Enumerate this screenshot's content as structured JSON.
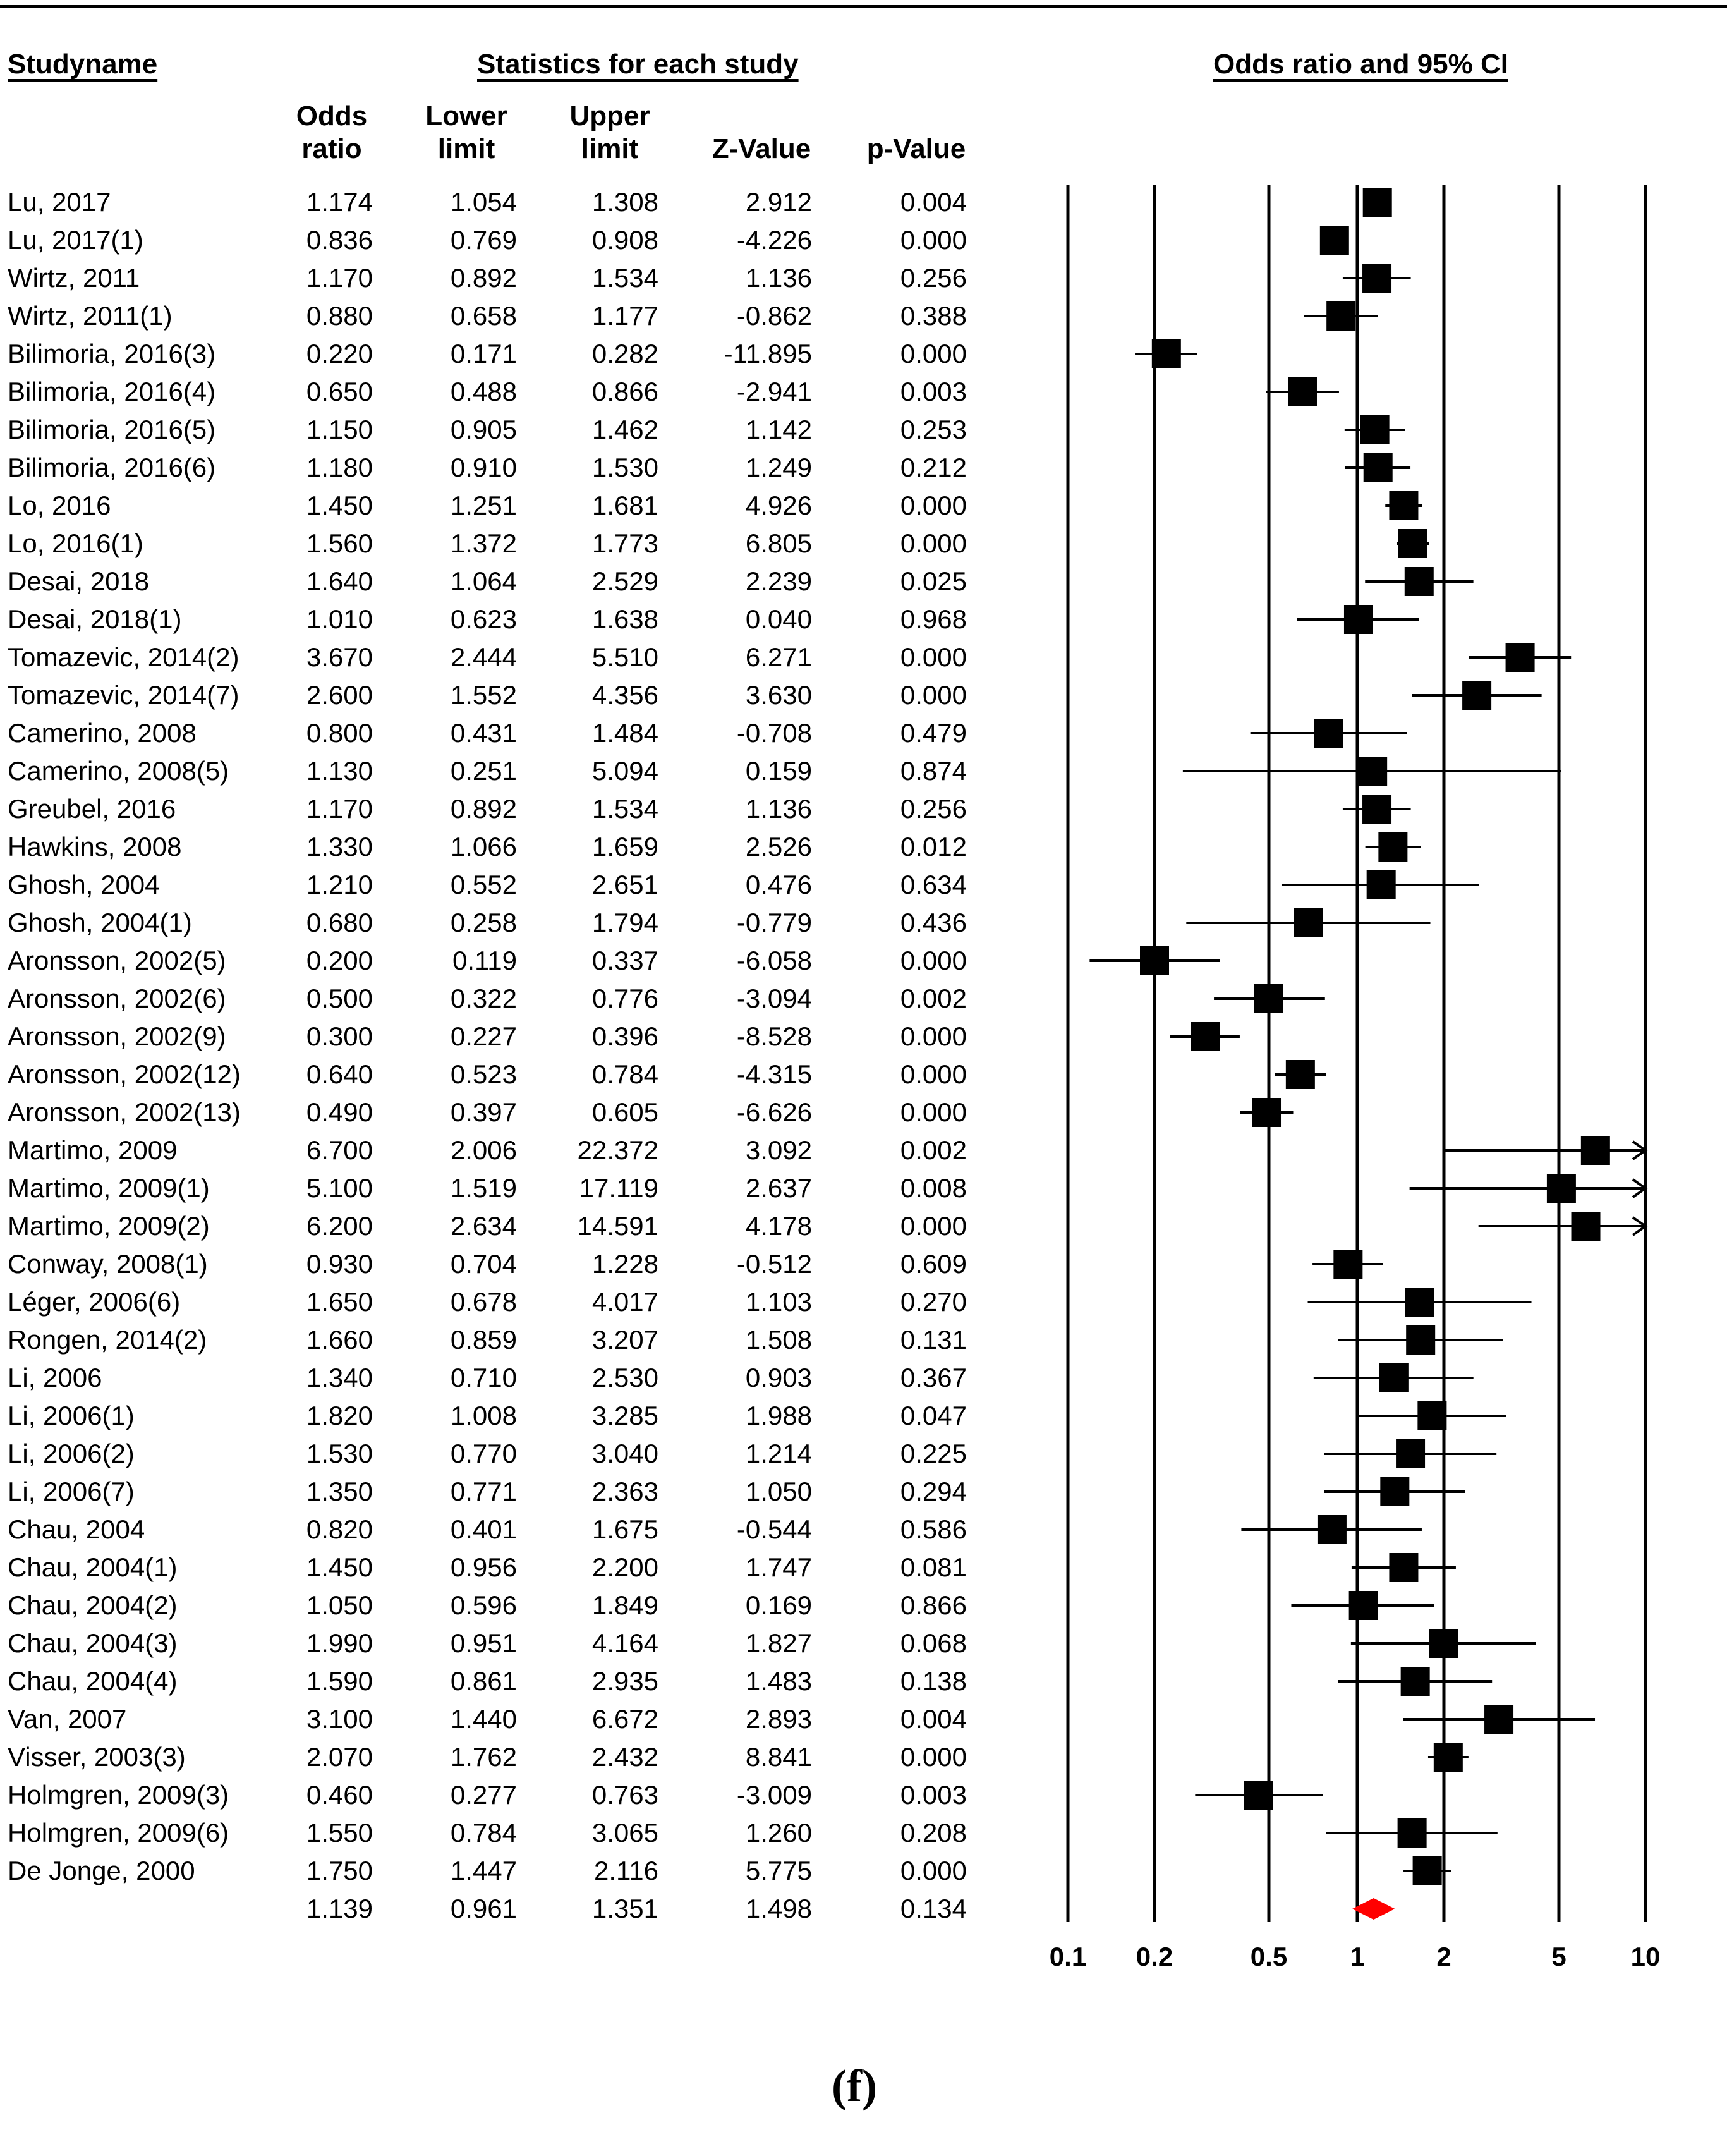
{
  "header": {
    "study_name": "Studyname",
    "statistics_title": "Statistics for each study",
    "ci_title": "Odds ratio and 95% CI"
  },
  "columns": {
    "odds": [
      "Odds",
      "ratio"
    ],
    "lower": [
      "Lower",
      "limit"
    ],
    "upper": [
      "Upper",
      "limit"
    ],
    "z": "Z-Value",
    "p": "p-Value"
  },
  "caption": "(f)",
  "chart_data": {
    "type": "forest",
    "xscale": "log",
    "xlim": [
      0.1,
      10
    ],
    "xticks": [
      "0.1",
      "0.2",
      "0.5",
      "1",
      "2",
      "5",
      "10"
    ],
    "xtick_values": [
      0.1,
      0.2,
      0.5,
      1,
      2,
      5,
      10
    ],
    "marker_color": "#000000",
    "summary_color": "#ff0000",
    "rows": [
      {
        "study": "Lu, 2017",
        "or": "1.174",
        "lower": "1.054",
        "upper": "1.308",
        "z": "2.912",
        "p": "0.004"
      },
      {
        "study": "Lu, 2017(1)",
        "or": "0.836",
        "lower": "0.769",
        "upper": "0.908",
        "z": "-4.226",
        "p": "0.000"
      },
      {
        "study": "Wirtz, 2011",
        "or": "1.170",
        "lower": "0.892",
        "upper": "1.534",
        "z": "1.136",
        "p": "0.256"
      },
      {
        "study": "Wirtz, 2011(1)",
        "or": "0.880",
        "lower": "0.658",
        "upper": "1.177",
        "z": "-0.862",
        "p": "0.388"
      },
      {
        "study": "Bilimoria, 2016(3)",
        "or": "0.220",
        "lower": "0.171",
        "upper": "0.282",
        "z": "-11.895",
        "p": "0.000"
      },
      {
        "study": "Bilimoria, 2016(4)",
        "or": "0.650",
        "lower": "0.488",
        "upper": "0.866",
        "z": "-2.941",
        "p": "0.003"
      },
      {
        "study": "Bilimoria, 2016(5)",
        "or": "1.150",
        "lower": "0.905",
        "upper": "1.462",
        "z": "1.142",
        "p": "0.253"
      },
      {
        "study": "Bilimoria, 2016(6)",
        "or": "1.180",
        "lower": "0.910",
        "upper": "1.530",
        "z": "1.249",
        "p": "0.212"
      },
      {
        "study": "Lo, 2016",
        "or": "1.450",
        "lower": "1.251",
        "upper": "1.681",
        "z": "4.926",
        "p": "0.000"
      },
      {
        "study": "Lo, 2016(1)",
        "or": "1.560",
        "lower": "1.372",
        "upper": "1.773",
        "z": "6.805",
        "p": "0.000"
      },
      {
        "study": "Desai, 2018",
        "or": "1.640",
        "lower": "1.064",
        "upper": "2.529",
        "z": "2.239",
        "p": "0.025"
      },
      {
        "study": "Desai, 2018(1)",
        "or": "1.010",
        "lower": "0.623",
        "upper": "1.638",
        "z": "0.040",
        "p": "0.968"
      },
      {
        "study": "Tomazevic, 2014(2)",
        "or": "3.670",
        "lower": "2.444",
        "upper": "5.510",
        "z": "6.271",
        "p": "0.000"
      },
      {
        "study": "Tomazevic, 2014(7)",
        "or": "2.600",
        "lower": "1.552",
        "upper": "4.356",
        "z": "3.630",
        "p": "0.000"
      },
      {
        "study": "Camerino, 2008",
        "or": "0.800",
        "lower": "0.431",
        "upper": "1.484",
        "z": "-0.708",
        "p": "0.479"
      },
      {
        "study": "Camerino, 2008(5)",
        "or": "1.130",
        "lower": "0.251",
        "upper": "5.094",
        "z": "0.159",
        "p": "0.874"
      },
      {
        "study": "Greubel, 2016",
        "or": "1.170",
        "lower": "0.892",
        "upper": "1.534",
        "z": "1.136",
        "p": "0.256"
      },
      {
        "study": "Hawkins, 2008",
        "or": "1.330",
        "lower": "1.066",
        "upper": "1.659",
        "z": "2.526",
        "p": "0.012"
      },
      {
        "study": "Ghosh, 2004",
        "or": "1.210",
        "lower": "0.552",
        "upper": "2.651",
        "z": "0.476",
        "p": "0.634"
      },
      {
        "study": "Ghosh, 2004(1)",
        "or": "0.680",
        "lower": "0.258",
        "upper": "1.794",
        "z": "-0.779",
        "p": "0.436"
      },
      {
        "study": "Aronsson, 2002(5)",
        "or": "0.200",
        "lower": "0.119",
        "upper": "0.337",
        "z": "-6.058",
        "p": "0.000"
      },
      {
        "study": "Aronsson, 2002(6)",
        "or": "0.500",
        "lower": "0.322",
        "upper": "0.776",
        "z": "-3.094",
        "p": "0.002"
      },
      {
        "study": "Aronsson, 2002(9)",
        "or": "0.300",
        "lower": "0.227",
        "upper": "0.396",
        "z": "-8.528",
        "p": "0.000"
      },
      {
        "study": "Aronsson, 2002(12)",
        "or": "0.640",
        "lower": "0.523",
        "upper": "0.784",
        "z": "-4.315",
        "p": "0.000"
      },
      {
        "study": "Aronsson, 2002(13)",
        "or": "0.490",
        "lower": "0.397",
        "upper": "0.605",
        "z": "-6.626",
        "p": "0.000"
      },
      {
        "study": "Martimo, 2009",
        "or": "6.700",
        "lower": "2.006",
        "upper": "22.372",
        "z": "3.092",
        "p": "0.002"
      },
      {
        "study": "Martimo, 2009(1)",
        "or": "5.100",
        "lower": "1.519",
        "upper": "17.119",
        "z": "2.637",
        "p": "0.008"
      },
      {
        "study": "Martimo, 2009(2)",
        "or": "6.200",
        "lower": "2.634",
        "upper": "14.591",
        "z": "4.178",
        "p": "0.000"
      },
      {
        "study": "Conway, 2008(1)",
        "or": "0.930",
        "lower": "0.704",
        "upper": "1.228",
        "z": "-0.512",
        "p": "0.609"
      },
      {
        "study": "Léger, 2006(6)",
        "or": "1.650",
        "lower": "0.678",
        "upper": "4.017",
        "z": "1.103",
        "p": "0.270"
      },
      {
        "study": "Rongen, 2014(2)",
        "or": "1.660",
        "lower": "0.859",
        "upper": "3.207",
        "z": "1.508",
        "p": "0.131"
      },
      {
        "study": "Li, 2006",
        "or": "1.340",
        "lower": "0.710",
        "upper": "2.530",
        "z": "0.903",
        "p": "0.367"
      },
      {
        "study": "Li, 2006(1)",
        "or": "1.820",
        "lower": "1.008",
        "upper": "3.285",
        "z": "1.988",
        "p": "0.047"
      },
      {
        "study": "Li, 2006(2)",
        "or": "1.530",
        "lower": "0.770",
        "upper": "3.040",
        "z": "1.214",
        "p": "0.225"
      },
      {
        "study": "Li, 2006(7)",
        "or": "1.350",
        "lower": "0.771",
        "upper": "2.363",
        "z": "1.050",
        "p": "0.294"
      },
      {
        "study": "Chau, 2004",
        "or": "0.820",
        "lower": "0.401",
        "upper": "1.675",
        "z": "-0.544",
        "p": "0.586"
      },
      {
        "study": "Chau, 2004(1)",
        "or": "1.450",
        "lower": "0.956",
        "upper": "2.200",
        "z": "1.747",
        "p": "0.081"
      },
      {
        "study": "Chau, 2004(2)",
        "or": "1.050",
        "lower": "0.596",
        "upper": "1.849",
        "z": "0.169",
        "p": "0.866"
      },
      {
        "study": "Chau, 2004(3)",
        "or": "1.990",
        "lower": "0.951",
        "upper": "4.164",
        "z": "1.827",
        "p": "0.068"
      },
      {
        "study": "Chau, 2004(4)",
        "or": "1.590",
        "lower": "0.861",
        "upper": "2.935",
        "z": "1.483",
        "p": "0.138"
      },
      {
        "study": "Van, 2007",
        "or": "3.100",
        "lower": "1.440",
        "upper": "6.672",
        "z": "2.893",
        "p": "0.004"
      },
      {
        "study": "Visser, 2003(3)",
        "or": "2.070",
        "lower": "1.762",
        "upper": "2.432",
        "z": "8.841",
        "p": "0.000"
      },
      {
        "study": "Holmgren, 2009(3)",
        "or": "0.460",
        "lower": "0.277",
        "upper": "0.763",
        "z": "-3.009",
        "p": "0.003"
      },
      {
        "study": "Holmgren, 2009(6)",
        "or": "1.550",
        "lower": "0.784",
        "upper": "3.065",
        "z": "1.260",
        "p": "0.208"
      },
      {
        "study": "De Jonge, 2000",
        "or": "1.750",
        "lower": "1.447",
        "upper": "2.116",
        "z": "5.775",
        "p": "0.000"
      }
    ],
    "summary": {
      "study": "",
      "or": "1.139",
      "lower": "0.961",
      "upper": "1.351",
      "z": "1.498",
      "p": "0.134"
    }
  }
}
